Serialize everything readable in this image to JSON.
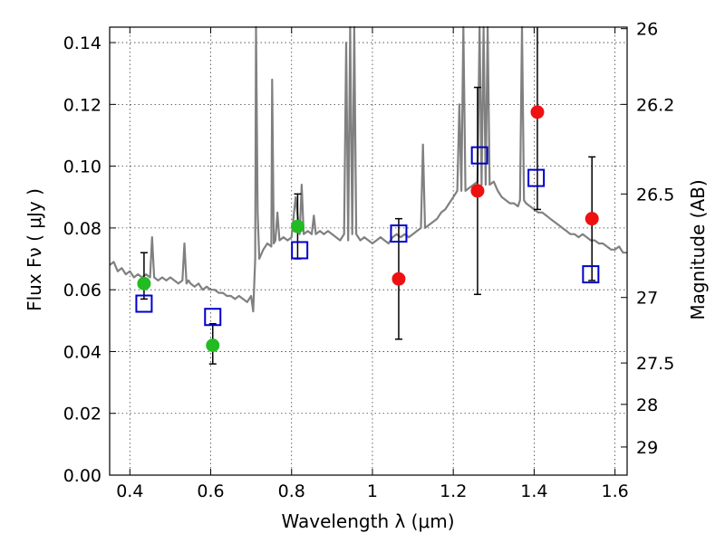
{
  "chart_data": {
    "type": "scatter",
    "title": "",
    "xlabel": "Wavelength  λ (μm)",
    "ylabel": "Flux  Fν  ( μJy )",
    "y2label": "Magnitude (AB)",
    "xlim": [
      0.35,
      1.63
    ],
    "ylim": [
      0.0,
      0.145
    ],
    "x_ticks": [
      0.4,
      0.6,
      0.8,
      1.0,
      1.2,
      1.4,
      1.6
    ],
    "x_tick_labels": [
      "0.4",
      "0.6",
      "0.8",
      "1",
      "1.2",
      "1.4",
      "1.6"
    ],
    "y_ticks": [
      0.0,
      0.02,
      0.04,
      0.06,
      0.08,
      0.1,
      0.12,
      0.14
    ],
    "y_tick_labels": [
      "0.00",
      "0.02",
      "0.04",
      "0.06",
      "0.08",
      "0.10",
      "0.12",
      "0.14"
    ],
    "y2_ticks": [
      {
        "flux": 0.1445,
        "label": "26"
      },
      {
        "flux": 0.12,
        "label": "26.2"
      },
      {
        "flux": 0.091,
        "label": "26.5"
      },
      {
        "flux": 0.0575,
        "label": "27"
      },
      {
        "flux": 0.0363,
        "label": "27.5"
      },
      {
        "flux": 0.0229,
        "label": "28"
      },
      {
        "flux": 0.0091,
        "label": "29"
      }
    ],
    "grid": true,
    "colors": {
      "spectrum": "#808080",
      "green_points": "#22bb22",
      "red_points": "#ee1111",
      "model_squares": "#0000cc",
      "error_bars": "#000000"
    },
    "series": [
      {
        "name": "Model spectrum",
        "kind": "line",
        "x": [
          0.35,
          0.36,
          0.37,
          0.38,
          0.39,
          0.4,
          0.41,
          0.42,
          0.43,
          0.44,
          0.45,
          0.455,
          0.46,
          0.47,
          0.48,
          0.49,
          0.5,
          0.51,
          0.52,
          0.53,
          0.535,
          0.54,
          0.545,
          0.55,
          0.56,
          0.57,
          0.58,
          0.59,
          0.6,
          0.61,
          0.62,
          0.63,
          0.64,
          0.65,
          0.66,
          0.67,
          0.68,
          0.69,
          0.7,
          0.705,
          0.71,
          0.712,
          0.716,
          0.72,
          0.73,
          0.74,
          0.75,
          0.752,
          0.756,
          0.76,
          0.765,
          0.77,
          0.78,
          0.79,
          0.8,
          0.81,
          0.82,
          0.825,
          0.83,
          0.84,
          0.85,
          0.855,
          0.86,
          0.87,
          0.88,
          0.89,
          0.9,
          0.91,
          0.92,
          0.93,
          0.935,
          0.94,
          0.945,
          0.95,
          0.955,
          0.96,
          0.965,
          0.97,
          0.98,
          0.99,
          1.0,
          1.01,
          1.02,
          1.03,
          1.04,
          1.05,
          1.06,
          1.07,
          1.08,
          1.09,
          1.1,
          1.11,
          1.12,
          1.125,
          1.13,
          1.14,
          1.15,
          1.16,
          1.17,
          1.18,
          1.19,
          1.2,
          1.21,
          1.215,
          1.22,
          1.225,
          1.23,
          1.24,
          1.25,
          1.26,
          1.265,
          1.27,
          1.275,
          1.28,
          1.285,
          1.29,
          1.3,
          1.31,
          1.32,
          1.33,
          1.34,
          1.35,
          1.36,
          1.365,
          1.37,
          1.375,
          1.38,
          1.39,
          1.4,
          1.41,
          1.42,
          1.43,
          1.44,
          1.45,
          1.46,
          1.47,
          1.48,
          1.49,
          1.5,
          1.51,
          1.52,
          1.53,
          1.54,
          1.55,
          1.56,
          1.57,
          1.58,
          1.59,
          1.6,
          1.61,
          1.62,
          1.63
        ],
        "y": [
          0.068,
          0.069,
          0.066,
          0.067,
          0.065,
          0.066,
          0.064,
          0.065,
          0.064,
          0.065,
          0.064,
          0.077,
          0.064,
          0.063,
          0.064,
          0.063,
          0.064,
          0.063,
          0.062,
          0.063,
          0.075,
          0.062,
          0.063,
          0.062,
          0.061,
          0.062,
          0.06,
          0.061,
          0.06,
          0.06,
          0.059,
          0.059,
          0.058,
          0.058,
          0.057,
          0.058,
          0.057,
          0.056,
          0.058,
          0.053,
          0.07,
          0.15,
          0.085,
          0.07,
          0.073,
          0.075,
          0.074,
          0.128,
          0.075,
          0.076,
          0.085,
          0.076,
          0.077,
          0.076,
          0.077,
          0.09,
          0.078,
          0.094,
          0.078,
          0.079,
          0.078,
          0.084,
          0.078,
          0.079,
          0.078,
          0.079,
          0.078,
          0.077,
          0.076,
          0.078,
          0.14,
          0.076,
          0.16,
          0.078,
          0.16,
          0.078,
          0.077,
          0.076,
          0.077,
          0.076,
          0.075,
          0.076,
          0.077,
          0.076,
          0.075,
          0.077,
          0.078,
          0.077,
          0.078,
          0.077,
          0.078,
          0.079,
          0.08,
          0.107,
          0.08,
          0.081,
          0.082,
          0.083,
          0.085,
          0.086,
          0.088,
          0.09,
          0.092,
          0.12,
          0.092,
          0.16,
          0.092,
          0.093,
          0.094,
          0.095,
          0.16,
          0.094,
          0.16,
          0.094,
          0.16,
          0.094,
          0.095,
          0.092,
          0.09,
          0.089,
          0.088,
          0.088,
          0.087,
          0.089,
          0.16,
          0.089,
          0.088,
          0.087,
          0.086,
          0.085,
          0.085,
          0.084,
          0.083,
          0.082,
          0.081,
          0.08,
          0.079,
          0.078,
          0.078,
          0.077,
          0.078,
          0.077,
          0.076,
          0.076,
          0.075,
          0.075,
          0.074,
          0.073,
          0.073,
          0.074,
          0.072,
          0.072
        ]
      },
      {
        "name": "Observed flux (green)",
        "kind": "errorbar",
        "marker": "circle",
        "x": [
          0.435,
          0.605,
          0.815
        ],
        "y": [
          0.062,
          0.042,
          0.0805
        ],
        "err_low": [
          0.005,
          0.006,
          0.0105
        ],
        "err_high": [
          0.01,
          0.007,
          0.0105
        ]
      },
      {
        "name": "Observed flux (red)",
        "kind": "errorbar",
        "marker": "circle",
        "x": [
          1.065,
          1.26,
          1.408,
          1.543
        ],
        "y": [
          0.0635,
          0.092,
          0.1175,
          0.083
        ],
        "err_low": [
          0.0195,
          0.0335,
          0.0315,
          0.02
        ],
        "err_high": [
          0.0195,
          0.0335,
          0.0315,
          0.02
        ]
      },
      {
        "name": "Model photometry",
        "kind": "scatter",
        "marker": "open-square",
        "x": [
          0.435,
          0.605,
          0.82,
          1.065,
          1.265,
          1.405,
          1.54
        ],
        "y": [
          0.0555,
          0.0512,
          0.0728,
          0.0782,
          0.1035,
          0.0962,
          0.065
        ]
      }
    ]
  }
}
